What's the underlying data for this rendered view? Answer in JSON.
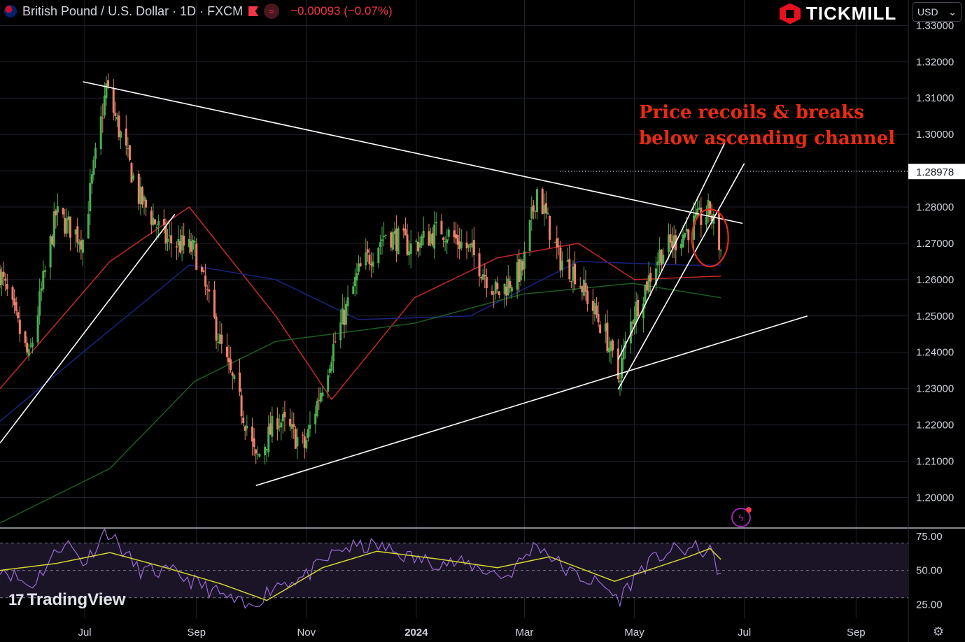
{
  "header": {
    "symbol_title": "British Pound / U.S. Dollar · 1D · FXCM",
    "change": "−0.00093 (−0.07%)"
  },
  "brand": {
    "name": "TICKMILL"
  },
  "currency_select": {
    "value": "USD",
    "options": [
      "USD"
    ]
  },
  "annotation": "Price recoils & breaks\nbelow ascending channel",
  "watermark": "TradingView",
  "colors": {
    "up": "#4caf50",
    "down": "#f0806a",
    "ma_red": "#c62828",
    "ma_blue": "#1a237e",
    "ma_green": "#1b5e20",
    "rsi": "#9c6ad8",
    "rsi_ma": "#d6d633",
    "annotation": "#e82b13"
  },
  "icons": [
    "flag-icon",
    "alert-flag-icon",
    "indicator-icon",
    "gear-icon",
    "flash-icon",
    "tickmill-logo-icon",
    "chevron-down-icon"
  ],
  "chart_data": [
    {
      "type": "candlestick",
      "title": "British Pound / U.S. Dollar · 1D · FXCM",
      "x_ticks": [
        "Jul",
        "Sep",
        "Nov",
        "2024",
        "Mar",
        "May",
        "Jul",
        "Sep"
      ],
      "y_ticks": [
        "1.33000",
        "1.32000",
        "1.31000",
        "1.30000",
        "1.29000",
        "1.28000",
        "1.27000",
        "1.26000",
        "1.25000",
        "1.24000",
        "1.23000",
        "1.22000",
        "1.21000",
        "1.20000"
      ],
      "ylim": [
        1.192,
        1.337
      ],
      "price_label": "1.28978",
      "price_level": 1.28978,
      "close_path": [
        [
          "2023-05-15",
          1.262
        ],
        [
          "2023-05-31",
          1.238
        ],
        [
          "2023-06-15",
          1.278
        ],
        [
          "2023-06-30",
          1.271
        ],
        [
          "2023-07-13",
          1.313
        ],
        [
          "2023-07-31",
          1.283
        ],
        [
          "2023-08-15",
          1.271
        ],
        [
          "2023-08-31",
          1.268
        ],
        [
          "2023-09-15",
          1.241
        ],
        [
          "2023-09-29",
          1.22
        ],
        [
          "2023-10-04",
          1.21
        ],
        [
          "2023-10-16",
          1.222
        ],
        [
          "2023-10-31",
          1.214
        ],
        [
          "2023-11-15",
          1.24
        ],
        [
          "2023-11-30",
          1.262
        ],
        [
          "2023-12-15",
          1.273
        ],
        [
          "2023-12-29",
          1.269
        ],
        [
          "2024-01-15",
          1.274
        ],
        [
          "2024-01-31",
          1.268
        ],
        [
          "2024-02-15",
          1.256
        ],
        [
          "2024-02-29",
          1.263
        ],
        [
          "2024-03-08",
          1.285
        ],
        [
          "2024-03-20",
          1.266
        ],
        [
          "2024-03-29",
          1.262
        ],
        [
          "2024-04-15",
          1.245
        ],
        [
          "2024-04-22",
          1.233
        ],
        [
          "2024-04-30",
          1.25
        ],
        [
          "2024-05-15",
          1.267
        ],
        [
          "2024-05-31",
          1.274
        ],
        [
          "2024-06-12",
          1.279
        ],
        [
          "2024-06-18",
          1.268
        ]
      ],
      "trendlines": [
        {
          "name": "descending-resistance",
          "points": [
            [
              "2023-06-30",
              1.3145
            ],
            [
              "2024-06-30",
              1.2755
            ]
          ]
        },
        {
          "name": "ascending-support",
          "points": [
            [
              "2023-10-04",
              1.2033
            ],
            [
              "2024-08-05",
              1.25
            ]
          ]
        },
        {
          "name": "early-support",
          "points": [
            [
              "2023-05-15",
              1.215
            ],
            [
              "2023-08-20",
              1.278
            ]
          ]
        },
        {
          "name": "channel-upper",
          "points": [
            [
              "2024-04-22",
              1.238
            ],
            [
              "2024-06-20",
              1.2975
            ]
          ]
        },
        {
          "name": "channel-lower",
          "points": [
            [
              "2024-04-22",
              1.2298
            ],
            [
              "2024-07-01",
              1.292
            ]
          ]
        }
      ],
      "moving_averages": [
        {
          "color": "#c62828",
          "points": [
            [
              "2023-05-15",
              1.23
            ],
            [
              "2023-07-15",
              1.265
            ],
            [
              "2023-08-28",
              1.28
            ],
            [
              "2023-10-15",
              1.25
            ],
            [
              "2023-11-15",
              1.227
            ],
            [
              "2023-12-31",
              1.255
            ],
            [
              "2024-02-15",
              1.266
            ],
            [
              "2024-03-31",
              1.27
            ],
            [
              "2024-05-01",
              1.26
            ],
            [
              "2024-06-18",
              1.261
            ]
          ]
        },
        {
          "color": "#1a237e",
          "points": [
            [
              "2023-05-15",
              1.221
            ],
            [
              "2023-06-30",
              1.24
            ],
            [
              "2023-08-28",
              1.264
            ],
            [
              "2023-10-15",
              1.26
            ],
            [
              "2023-11-30",
              1.249
            ],
            [
              "2024-01-31",
              1.25
            ],
            [
              "2024-03-31",
              1.265
            ],
            [
              "2024-05-31",
              1.264
            ],
            [
              "2024-06-18",
              1.264
            ]
          ]
        },
        {
          "color": "#1b5e20",
          "points": [
            [
              "2023-05-15",
              1.193
            ],
            [
              "2023-07-15",
              1.208
            ],
            [
              "2023-08-31",
              1.232
            ],
            [
              "2023-10-15",
              1.243
            ],
            [
              "2023-12-31",
              1.248
            ],
            [
              "2024-02-29",
              1.256
            ],
            [
              "2024-04-30",
              1.259
            ],
            [
              "2024-06-18",
              1.255
            ]
          ]
        }
      ],
      "highlight_ellipse": {
        "x": "2024-06-12",
        "y": 1.2715
      }
    },
    {
      "type": "line",
      "y_ticks": [
        "75.00",
        "50.00",
        "25.00"
      ],
      "ylim": [
        15,
        80
      ],
      "bands": [
        70,
        50,
        30
      ],
      "series": [
        {
          "points": [
            [
              "2023-05-15",
              53
            ],
            [
              "2023-06-01",
              38
            ],
            [
              "2023-06-20",
              72
            ],
            [
              "2023-07-01",
              55
            ],
            [
              "2023-07-13",
              80
            ],
            [
              "2023-07-31",
              50
            ],
            [
              "2023-08-20",
              48
            ],
            [
              "2023-09-10",
              35
            ],
            [
              "2023-09-30",
              22
            ],
            [
              "2023-10-15",
              40
            ],
            [
              "2023-10-31",
              45
            ],
            [
              "2023-11-20",
              66
            ],
            [
              "2023-12-10",
              68
            ],
            [
              "2024-01-01",
              58
            ],
            [
              "2024-01-31",
              54
            ],
            [
              "2024-02-20",
              45
            ],
            [
              "2024-03-08",
              70
            ],
            [
              "2024-03-25",
              49
            ],
            [
              "2024-04-15",
              38
            ],
            [
              "2024-04-22",
              28
            ],
            [
              "2024-05-05",
              52
            ],
            [
              "2024-05-20",
              64
            ],
            [
              "2024-06-05",
              66
            ],
            [
              "2024-06-12",
              63
            ],
            [
              "2024-06-18",
              47
            ]
          ]
        },
        {
          "points": [
            [
              "2023-05-15",
              50
            ],
            [
              "2023-06-15",
              55
            ],
            [
              "2023-07-15",
              63
            ],
            [
              "2023-08-15",
              52
            ],
            [
              "2023-09-15",
              40
            ],
            [
              "2023-10-10",
              28
            ],
            [
              "2023-11-10",
              52
            ],
            [
              "2023-12-10",
              64
            ],
            [
              "2024-01-15",
              58
            ],
            [
              "2024-02-15",
              52
            ],
            [
              "2024-03-15",
              60
            ],
            [
              "2024-04-20",
              42
            ],
            [
              "2024-05-31",
              60
            ],
            [
              "2024-06-12",
              66
            ],
            [
              "2024-06-18",
              58
            ]
          ]
        }
      ]
    }
  ]
}
